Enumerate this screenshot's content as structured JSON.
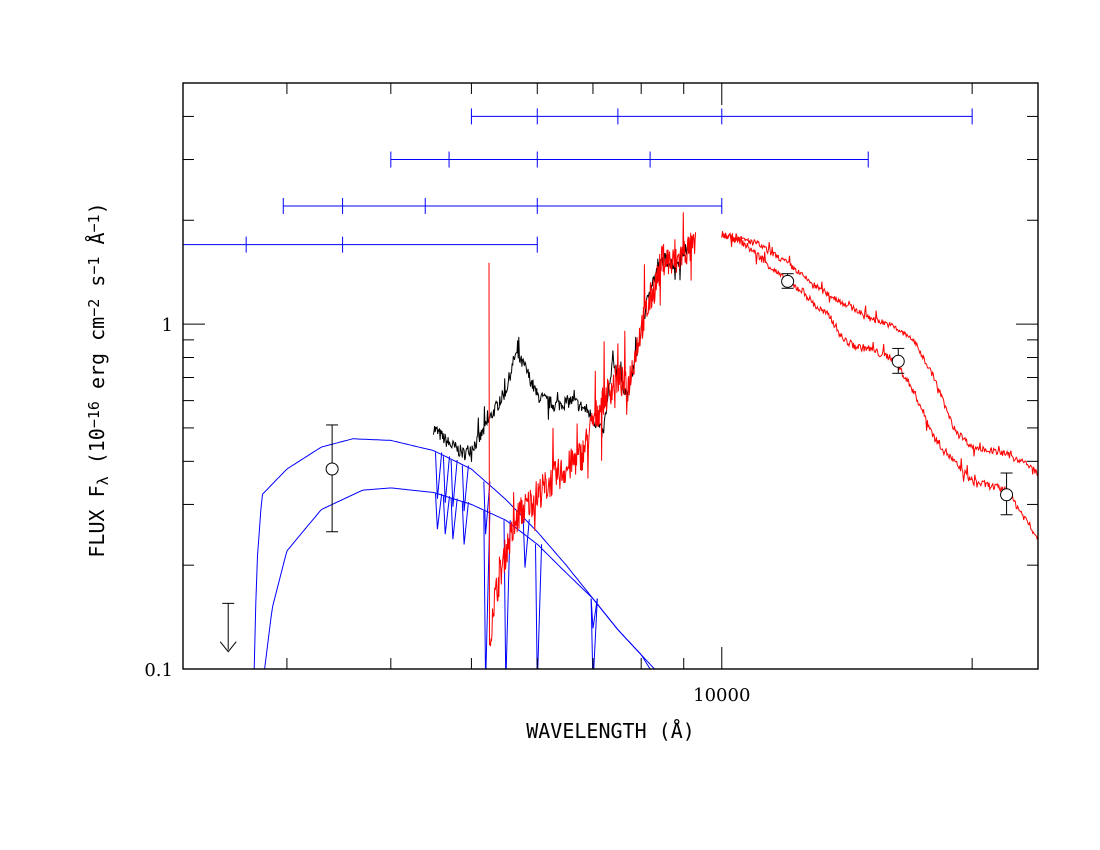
{
  "chart_data": {
    "type": "line",
    "xlabel": "WAVELENGTH (Å)",
    "ylabel": {
      "prefix": "FLUX F",
      "subscript": "λ",
      "mid": " (10",
      "exp1": "−16",
      "mid2": " erg cm",
      "exp2": "−2",
      "mid3": " s",
      "exp3": "−1",
      "mid4": " Å",
      "exp4": "−1",
      "suffix": ")"
    },
    "x_scale": "log",
    "y_scale": "log",
    "xlim": [
      2250,
      24000
    ],
    "ylim": [
      0.1,
      5
    ],
    "x_tick_labels": [
      {
        "value": 10000,
        "label": "10000"
      }
    ],
    "y_tick_labels": [
      {
        "value": 1,
        "label": "1"
      },
      {
        "value": 0.1,
        "label": "0.1"
      }
    ],
    "colors": {
      "model": "#0000ff",
      "observed": "#000000",
      "template": "#ff0000",
      "filters": "#0000ff",
      "points": "#000000"
    },
    "filter_bars": [
      {
        "y": 4.0,
        "x_start": 5000,
        "x_end": 20000,
        "ticks": [
          5000,
          6000,
          7500,
          10000,
          20000
        ]
      },
      {
        "y": 3.0,
        "x_start": 4000,
        "x_end": 15000,
        "ticks": [
          4000,
          4700,
          6000,
          8200,
          15000
        ]
      },
      {
        "y": 2.2,
        "x_start": 2970,
        "x_end": 10000,
        "ticks": [
          2970,
          3500,
          4400,
          6000,
          10000
        ]
      },
      {
        "y": 1.7,
        "x_start": 2250,
        "x_end": 6000,
        "ticks": [
          2680,
          3500,
          6000
        ]
      }
    ],
    "photometry": [
      {
        "x": 3400,
        "y": 0.38,
        "ylow": 0.25,
        "yhigh": 0.51
      },
      {
        "x": 12000,
        "y": 1.33,
        "ylow": 1.27,
        "yhigh": 1.4
      },
      {
        "x": 16300,
        "y": 0.78,
        "ylow": 0.72,
        "yhigh": 0.85
      },
      {
        "x": 22000,
        "y": 0.32,
        "ylow": 0.28,
        "yhigh": 0.37
      }
    ],
    "upper_limit": {
      "x": 2550,
      "y": 0.155,
      "y_to": 0.12
    },
    "series": [
      {
        "color": "#0000ff",
        "style": "model",
        "points": [
          [
            2740,
            0.1
          ],
          [
            2760,
            0.2
          ],
          [
            2800,
            0.32
          ],
          [
            3000,
            0.38
          ],
          [
            3300,
            0.44
          ],
          [
            3600,
            0.465
          ],
          [
            4000,
            0.46
          ],
          [
            4500,
            0.43
          ],
          [
            5000,
            0.38
          ],
          [
            5500,
            0.31
          ],
          [
            6000,
            0.25
          ],
          [
            6500,
            0.2
          ],
          [
            7000,
            0.16
          ],
          [
            7500,
            0.13
          ],
          [
            8000,
            0.11
          ],
          [
            8300,
            0.1
          ]
        ],
        "dips": [
          [
            4550,
            0.38
          ],
          [
            4650,
            0.37
          ],
          [
            4750,
            0.36
          ],
          [
            4900,
            0.35
          ],
          [
            5200,
            0.3
          ],
          [
            5800,
            0.24
          ],
          [
            7000,
            0.16
          ]
        ]
      },
      {
        "color": "#0000ff",
        "style": "model",
        "points": [
          [
            2820,
            0.1
          ],
          [
            2880,
            0.15
          ],
          [
            3000,
            0.22
          ],
          [
            3300,
            0.29
          ],
          [
            3700,
            0.33
          ],
          [
            4000,
            0.335
          ],
          [
            4500,
            0.325
          ],
          [
            5000,
            0.3
          ],
          [
            5500,
            0.27
          ],
          [
            6000,
            0.23
          ],
          [
            6500,
            0.19
          ],
          [
            7000,
            0.16
          ],
          [
            7500,
            0.13
          ],
          [
            8000,
            0.11
          ],
          [
            8200,
            0.1
          ]
        ],
        "dips": [
          [
            4550,
            0.31
          ],
          [
            4650,
            0.3
          ],
          [
            4750,
            0.29
          ],
          [
            4900,
            0.28
          ],
          [
            5200,
            0.1
          ],
          [
            5500,
            0.1
          ],
          [
            6000,
            0.1
          ],
          [
            7000,
            0.1
          ]
        ]
      },
      {
        "color": "#000000",
        "style": "noisy",
        "noise": 0.045,
        "points": [
          [
            4500,
            0.5
          ],
          [
            4700,
            0.45
          ],
          [
            4900,
            0.42
          ],
          [
            5100,
            0.46
          ],
          [
            5300,
            0.55
          ],
          [
            5500,
            0.64
          ],
          [
            5650,
            0.82
          ],
          [
            5800,
            0.75
          ],
          [
            6000,
            0.62
          ],
          [
            6300,
            0.58
          ],
          [
            6600,
            0.6
          ],
          [
            6900,
            0.56
          ],
          [
            7200,
            0.48
          ],
          [
            7400,
            0.78
          ],
          [
            7700,
            0.62
          ],
          [
            8000,
            0.95
          ],
          [
            8200,
            1.28
          ],
          [
            8500,
            1.55
          ],
          [
            8800,
            1.48
          ],
          [
            9000,
            1.62
          ],
          [
            9200,
            1.68
          ]
        ]
      },
      {
        "color": "#ff0000",
        "style": "noisy",
        "noise": 0.11,
        "points": [
          [
            5250,
            0.1
          ],
          [
            5300,
            0.15
          ],
          [
            5500,
            0.22
          ],
          [
            5700,
            0.28
          ],
          [
            6000,
            0.32
          ],
          [
            6300,
            0.36
          ],
          [
            6500,
            0.38
          ],
          [
            6800,
            0.42
          ],
          [
            7000,
            0.52
          ],
          [
            7200,
            0.6
          ],
          [
            7500,
            0.7
          ],
          [
            7700,
            0.65
          ],
          [
            8000,
            0.98
          ],
          [
            8300,
            1.28
          ],
          [
            8500,
            1.55
          ],
          [
            8800,
            1.5
          ],
          [
            9000,
            1.62
          ],
          [
            9300,
            1.68
          ]
        ]
      },
      {
        "color": "#ff0000",
        "style": "noisy",
        "noise": 0.025,
        "points": [
          [
            10000,
            1.82
          ],
          [
            10500,
            1.75
          ],
          [
            11000,
            1.6
          ],
          [
            11500,
            1.45
          ],
          [
            12000,
            1.32
          ],
          [
            12500,
            1.25
          ],
          [
            13000,
            1.12
          ],
          [
            13500,
            1.05
          ],
          [
            14000,
            0.9
          ],
          [
            14500,
            0.86
          ],
          [
            15000,
            0.85
          ],
          [
            15500,
            0.82
          ],
          [
            16000,
            0.8
          ],
          [
            16500,
            0.72
          ],
          [
            17000,
            0.64
          ],
          [
            17500,
            0.55
          ],
          [
            18000,
            0.47
          ],
          [
            19000,
            0.4
          ],
          [
            20000,
            0.35
          ],
          [
            21000,
            0.34
          ],
          [
            22000,
            0.33
          ],
          [
            23000,
            0.28
          ],
          [
            24000,
            0.24
          ]
        ]
      },
      {
        "color": "#ff0000",
        "style": "noisy",
        "noise": 0.02,
        "points": [
          [
            10000,
            1.82
          ],
          [
            11000,
            1.72
          ],
          [
            12000,
            1.5
          ],
          [
            13000,
            1.28
          ],
          [
            14000,
            1.15
          ],
          [
            15000,
            1.05
          ],
          [
            16000,
            0.99
          ],
          [
            17000,
            0.9
          ],
          [
            18000,
            0.7
          ],
          [
            19000,
            0.5
          ],
          [
            20000,
            0.44
          ],
          [
            21000,
            0.43
          ],
          [
            22000,
            0.42
          ],
          [
            23000,
            0.4
          ],
          [
            24000,
            0.37
          ]
        ]
      }
    ]
  }
}
